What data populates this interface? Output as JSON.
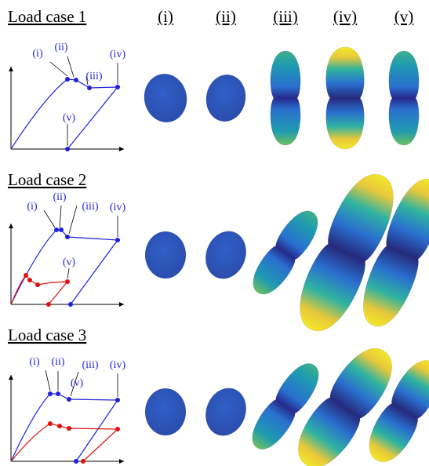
{
  "columns": [
    "(i)",
    "(ii)",
    "(iii)",
    "(iv)",
    "(v)"
  ],
  "load_cases": [
    {
      "title": "Load case 1",
      "point_labels": [
        "(i)",
        "(ii)",
        "(iii)",
        "(iv)",
        "(v)"
      ]
    },
    {
      "title": "Load case 2",
      "point_labels": [
        "(i)",
        "(ii)",
        "(iii)",
        "(iv)",
        "(v)"
      ]
    },
    {
      "title": "Load case 3",
      "point_labels": [
        "(i)",
        "(ii)",
        "(iii)",
        "(iv)",
        "(v)"
      ]
    }
  ]
}
